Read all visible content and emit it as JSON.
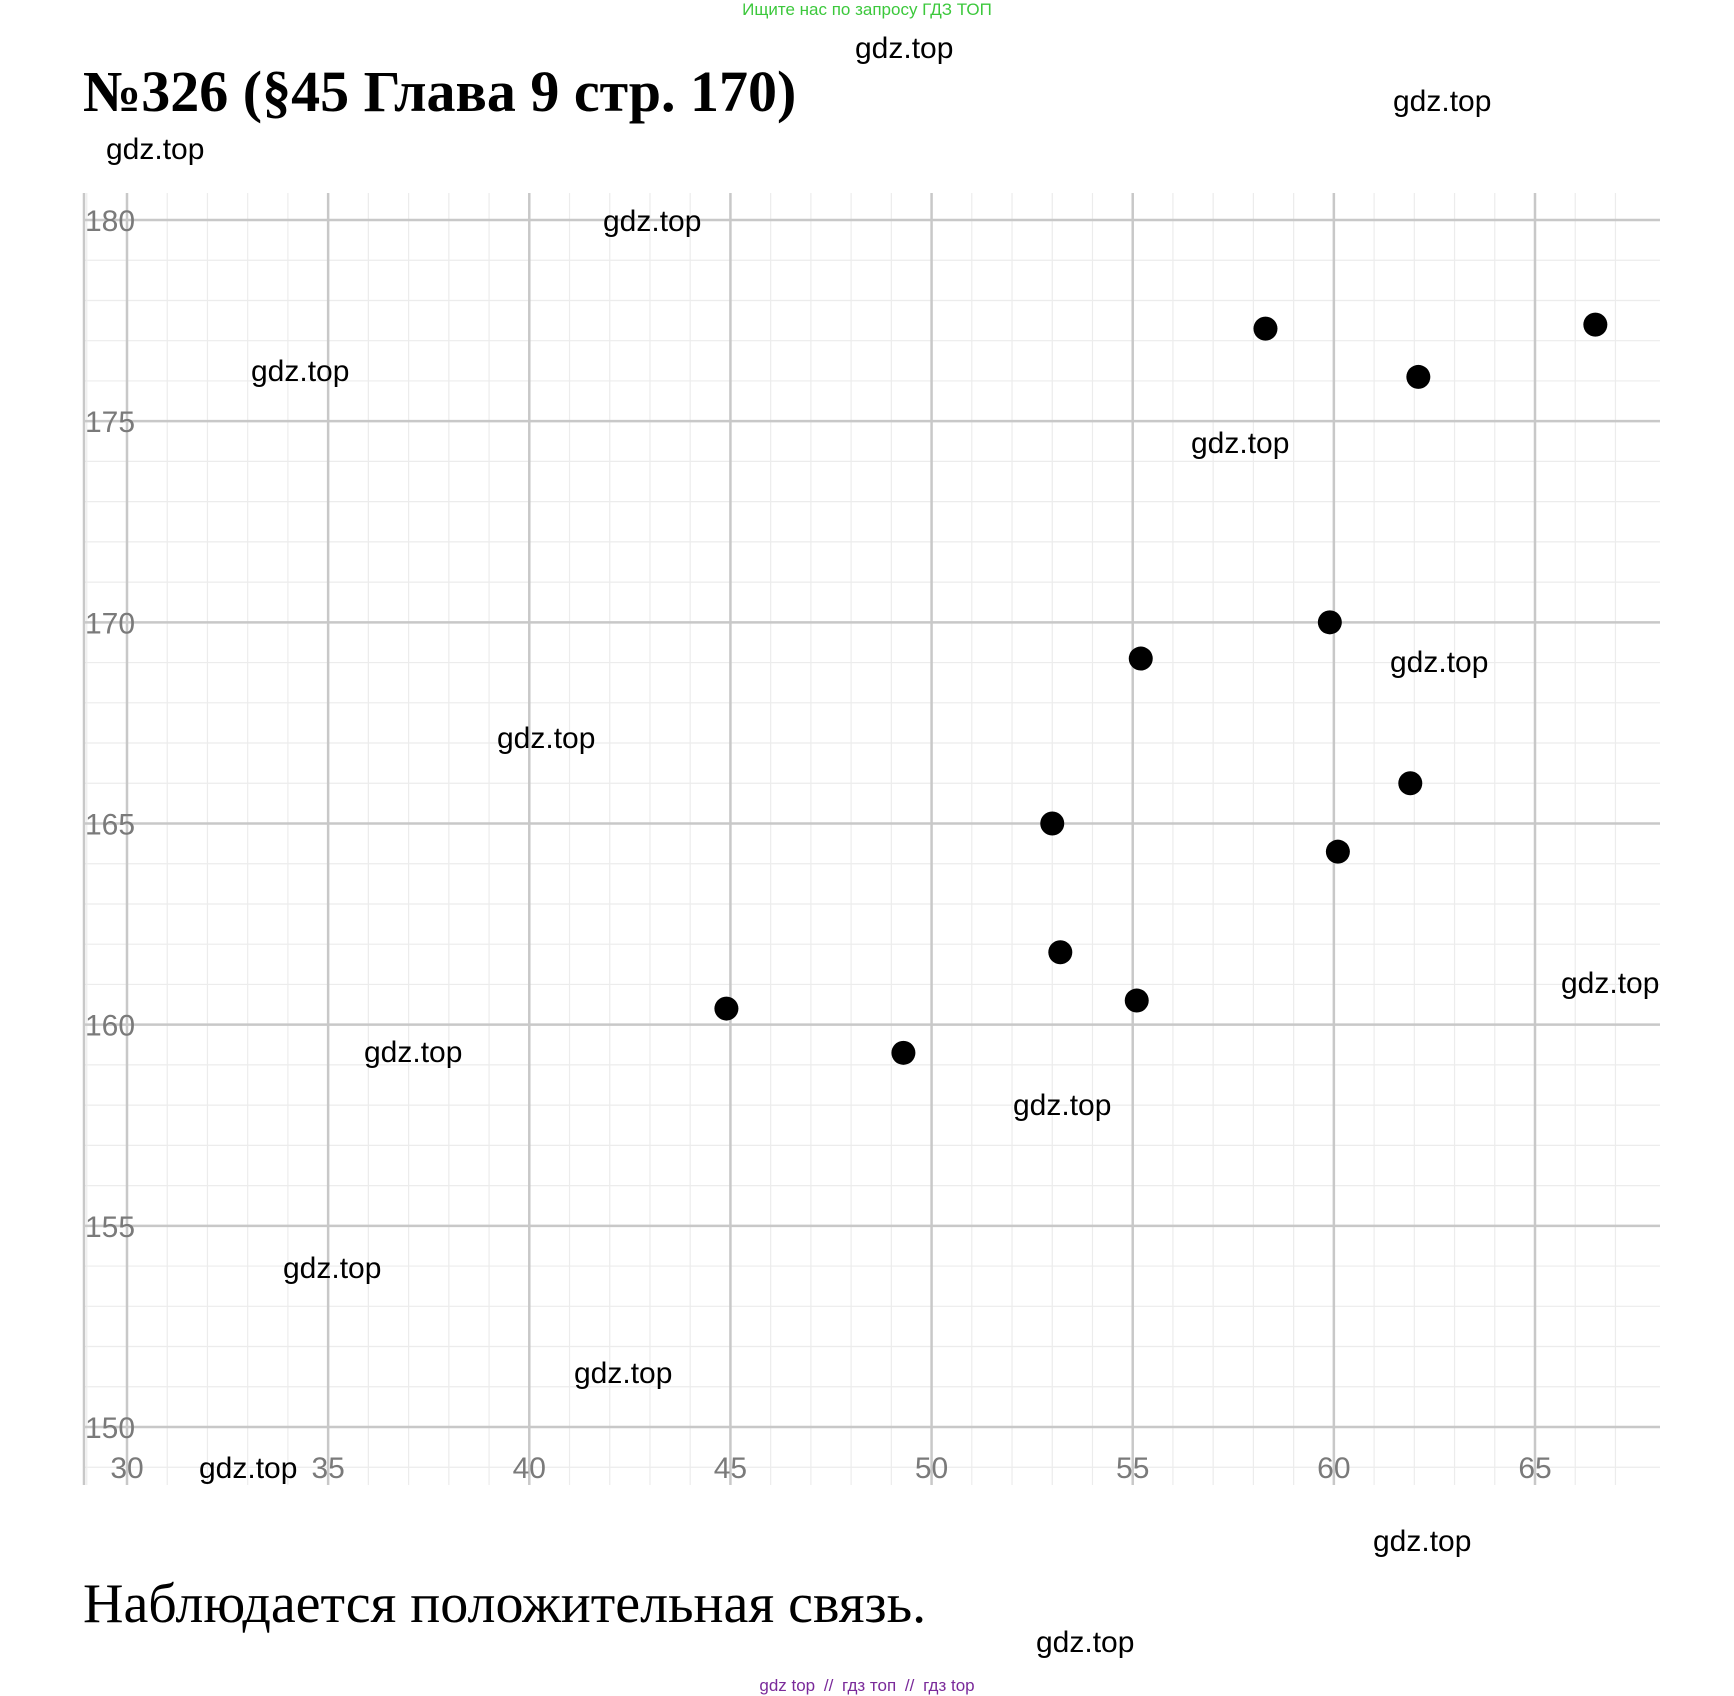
{
  "banner": "Ищите нас по запросу ГДЗ ТОП",
  "title": "№326 (§45 Глава 9 стр. 170)",
  "conclusion": "Наблюдается положительная связь.",
  "footer_links": [
    "gdz top",
    "//",
    "гдз топ",
    "//",
    "гдз top"
  ],
  "watermark_text": "gdz.top",
  "chart_data": {
    "type": "scatter",
    "title": "",
    "xlabel": "",
    "ylabel": "",
    "xlim": [
      30,
      67
    ],
    "ylim": [
      150,
      181
    ],
    "x_ticks": [
      30,
      35,
      40,
      45,
      50,
      55,
      60,
      65
    ],
    "y_ticks": [
      150,
      155,
      160,
      165,
      170,
      175,
      180
    ],
    "grid": "major and minor",
    "points": [
      {
        "x": 44.9,
        "y": 160.4
      },
      {
        "x": 49.3,
        "y": 159.3
      },
      {
        "x": 53.0,
        "y": 165.0
      },
      {
        "x": 53.2,
        "y": 161.8
      },
      {
        "x": 55.1,
        "y": 160.6
      },
      {
        "x": 55.2,
        "y": 169.1
      },
      {
        "x": 58.3,
        "y": 177.3
      },
      {
        "x": 59.9,
        "y": 170.0
      },
      {
        "x": 60.1,
        "y": 164.3
      },
      {
        "x": 61.9,
        "y": 166.0
      },
      {
        "x": 62.1,
        "y": 176.1
      },
      {
        "x": 66.5,
        "y": 177.4
      }
    ],
    "colors": {
      "points": "#000000",
      "major_grid": "#c8c8c8",
      "minor_grid": "#ececec",
      "tick_labels": "#7a7a7a"
    }
  }
}
